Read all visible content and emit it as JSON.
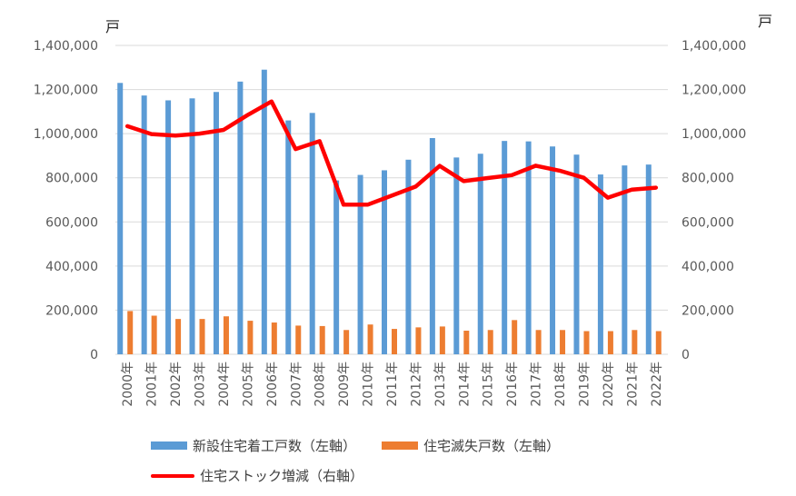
{
  "chart_data": {
    "type": "bar+line",
    "categories": [
      "2000年",
      "2001年",
      "2002年",
      "2003年",
      "2004年",
      "2005年",
      "2006年",
      "2007年",
      "2008年",
      "2009年",
      "2010年",
      "2011年",
      "2012年",
      "2013年",
      "2014年",
      "2015年",
      "2016年",
      "2017年",
      "2018年",
      "2019年",
      "2020年",
      "2021年",
      "2022年"
    ],
    "series": [
      {
        "name": "新設住宅着工戸数（左軸）",
        "type": "bar",
        "axis": "left",
        "color": "#5B9BD5",
        "values": [
          1230000,
          1173000,
          1151000,
          1160000,
          1189000,
          1236000,
          1290000,
          1060000,
          1094000,
          788000,
          813000,
          834000,
          882000,
          980000,
          892000,
          909000,
          967000,
          965000,
          942000,
          905000,
          815000,
          856000,
          860000
        ]
      },
      {
        "name": "住宅滅失戸数（左軸）",
        "type": "bar",
        "axis": "left",
        "color": "#ED7D31",
        "values": [
          196000,
          175000,
          160000,
          160000,
          172000,
          152000,
          144000,
          130000,
          128000,
          110000,
          135000,
          115000,
          122000,
          126000,
          107000,
          110000,
          155000,
          110000,
          110000,
          105000,
          105000,
          110000,
          105000
        ]
      },
      {
        "name": "住宅ストック増減（右軸）",
        "type": "line",
        "axis": "right",
        "color": "#FF0000",
        "values": [
          1034000,
          998000,
          991000,
          1000000,
          1017000,
          1084000,
          1146000,
          930000,
          966000,
          678000,
          678000,
          719000,
          760000,
          854000,
          785000,
          799000,
          812000,
          855000,
          832000,
          800000,
          710000,
          746000,
          755000
        ]
      }
    ],
    "y_left": {
      "label": "戸",
      "min": 0,
      "max": 1400000,
      "ticks": [
        "0",
        "200,000",
        "400,000",
        "600,000",
        "800,000",
        "1,000,000",
        "1,200,000",
        "1,400,000"
      ]
    },
    "y_right": {
      "label": "戸",
      "min": 0,
      "max": 1400000,
      "ticks": [
        "0",
        "200,000",
        "400,000",
        "600,000",
        "800,000",
        "1,000,000",
        "1,200,000",
        "1,400,000"
      ]
    },
    "grid": true,
    "legend_position": "bottom"
  }
}
